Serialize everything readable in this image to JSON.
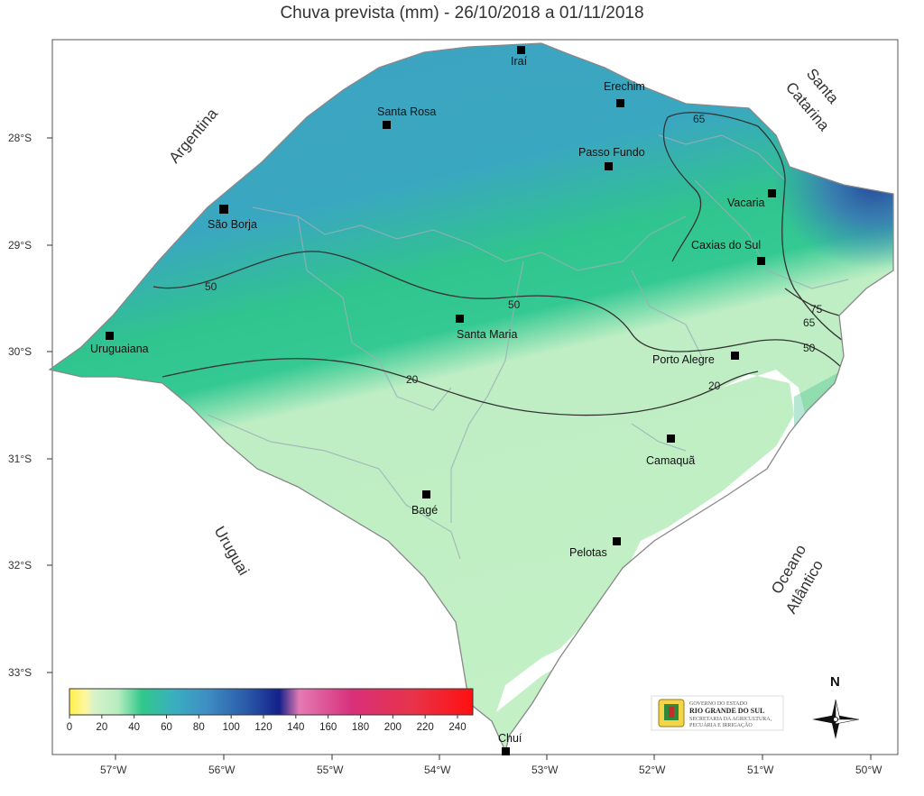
{
  "title": "Chuva prevista (mm) - 26/10/2018 a 01/11/2018",
  "axes": {
    "lat_ticks": [
      "28°S",
      "29°S",
      "30°S",
      "31°S",
      "32°S",
      "33°S"
    ],
    "lon_ticks": [
      "57°W",
      "56°W",
      "55°W",
      "54°W",
      "53°W",
      "52°W",
      "51°W",
      "50°W"
    ]
  },
  "regions": {
    "argentina": "Argentina",
    "uruguai": "Uruguai",
    "santa_catarina_1": "Santa",
    "santa_catarina_2": "Catarina",
    "oceano_1": "Oceano",
    "oceano_2": "Atlântico"
  },
  "cities": [
    {
      "name": "Iraí"
    },
    {
      "name": "Erechim"
    },
    {
      "name": "Santa Rosa"
    },
    {
      "name": "Passo Fundo"
    },
    {
      "name": "São Borja"
    },
    {
      "name": "Vacaria"
    },
    {
      "name": "Caxias do Sul"
    },
    {
      "name": "Santa Maria"
    },
    {
      "name": "Uruguaiana"
    },
    {
      "name": "Porto Alegre"
    },
    {
      "name": "Camaquã"
    },
    {
      "name": "Bagé"
    },
    {
      "name": "Pelotas"
    },
    {
      "name": "Chuí"
    }
  ],
  "isolines": [
    "65",
    "50",
    "50",
    "50",
    "20",
    "20",
    "75",
    "65"
  ],
  "colorbar": {
    "ticks": [
      "0",
      "20",
      "40",
      "60",
      "80",
      "100",
      "120",
      "140",
      "160",
      "180",
      "200",
      "220",
      "240"
    ],
    "colors": [
      "#fff04a",
      "#c8f0c6",
      "#30c88a",
      "#3fa6c4",
      "#2a5aa8",
      "#14208a",
      "#e47ab4",
      "#d8307a",
      "#e8334a",
      "#ff1010"
    ]
  },
  "logo": {
    "line1": "GOVERNO DO ESTADO",
    "line2": "RIO GRANDE DO SUL",
    "line3": "SECRETARIA DA AGRICULTURA,",
    "line4": "PECUÁRIA E IRRIGAÇÃO"
  },
  "compass": {
    "label": "N"
  }
}
